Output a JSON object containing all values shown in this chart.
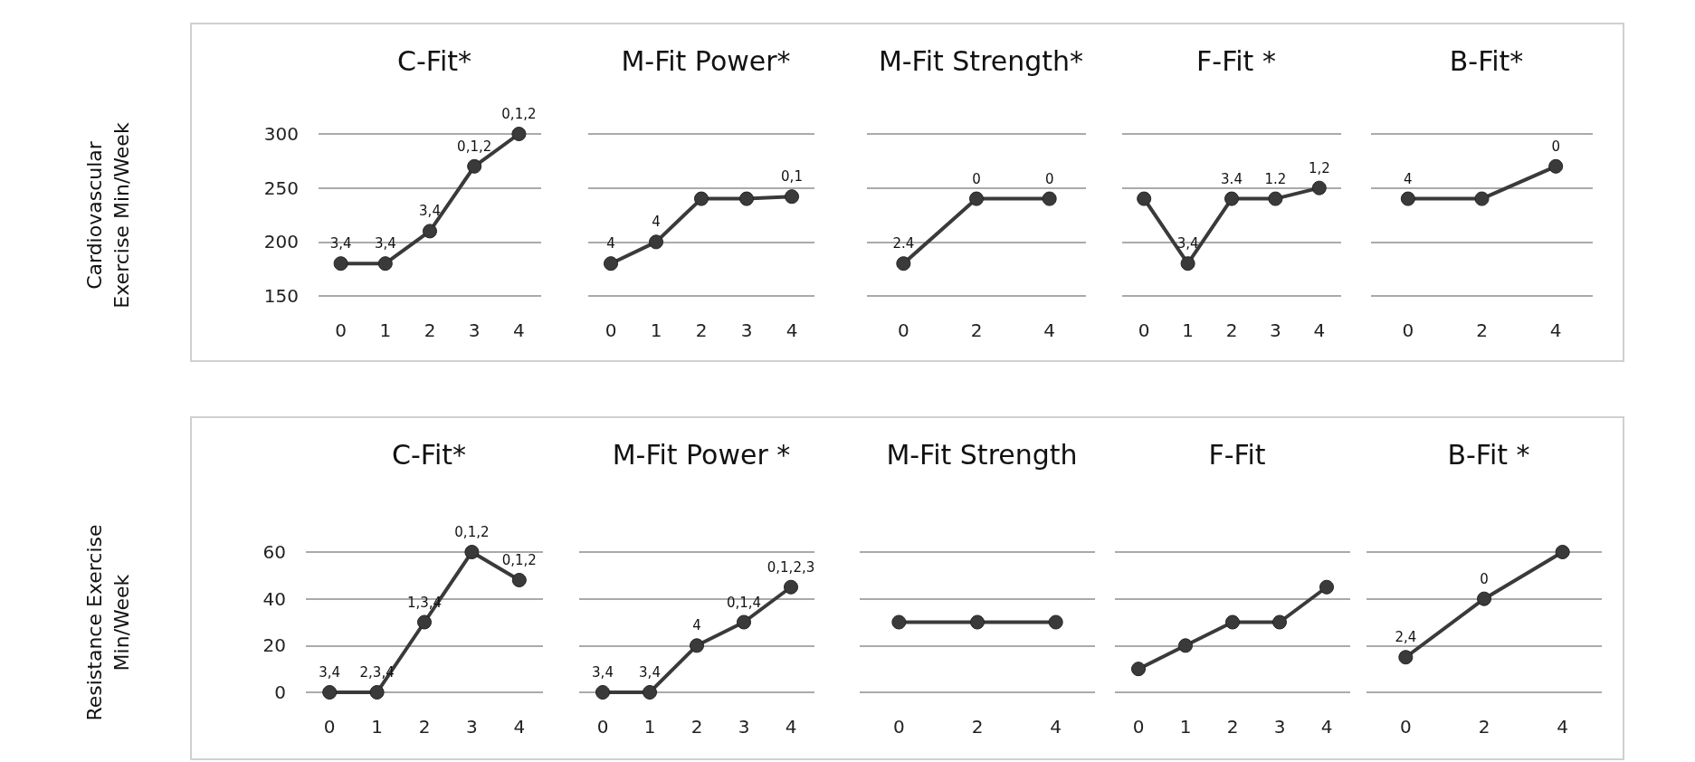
{
  "chart_data": [
    {
      "type": "line",
      "title": "C-Fit*",
      "ylabel": "Cardiovascular Exercise Min/Week",
      "categories": [
        "0",
        "1",
        "2",
        "3",
        "4"
      ],
      "ylim": [
        150,
        300
      ],
      "yticks": [
        150,
        200,
        250,
        300
      ],
      "grid": "y",
      "marker": "circle",
      "series": [
        {
          "color": "#3a3a3a",
          "values": [
            180,
            180,
            210,
            270,
            300
          ]
        }
      ],
      "annotations": [
        {
          "text": "3,4",
          "x": "0",
          "y": 180
        },
        {
          "text": "3,4",
          "x": "1",
          "y": 180
        },
        {
          "text": "3,4",
          "x": "2",
          "y": 210
        },
        {
          "text": "0,1,2",
          "x": "3",
          "y": 270
        },
        {
          "text": "0,1,2",
          "x": "4",
          "y": 300
        }
      ]
    },
    {
      "type": "line",
      "title": "M-Fit Power*",
      "categories": [
        "0",
        "1",
        "2",
        "3",
        "4"
      ],
      "ylim": [
        150,
        300
      ],
      "yticks": [
        150,
        200,
        250,
        300
      ],
      "grid": "y",
      "marker": "circle",
      "tick_labels": "x",
      "series": [
        {
          "color": "#3a3a3a",
          "values": [
            180,
            200,
            240,
            240,
            242
          ]
        }
      ],
      "annotations": [
        {
          "text": "4",
          "x": "0",
          "y": 180
        },
        {
          "text": "4",
          "x": "1",
          "y": 200
        },
        {
          "text": "0,1",
          "x": "4",
          "y": 242
        }
      ]
    },
    {
      "type": "line",
      "title": "M-Fit Strength*",
      "categories": [
        "0",
        "2",
        "4"
      ],
      "ylim": [
        150,
        300
      ],
      "yticks": [
        150,
        200,
        250,
        300
      ],
      "grid": "y",
      "marker": "circle",
      "tick_labels": "x",
      "series": [
        {
          "color": "#3a3a3a",
          "values": [
            180,
            240,
            240
          ]
        }
      ],
      "annotations": [
        {
          "text": "2.4",
          "x": "0",
          "y": 180
        },
        {
          "text": "0",
          "x": "2",
          "y": 240
        },
        {
          "text": "0",
          "x": "4",
          "y": 240
        }
      ]
    },
    {
      "type": "line",
      "title": "F-Fit *",
      "categories": [
        "0",
        "1",
        "2",
        "3",
        "4"
      ],
      "ylim": [
        150,
        300
      ],
      "yticks": [
        150,
        200,
        250,
        300
      ],
      "grid": "y",
      "marker": "circle",
      "tick_labels": "x",
      "series": [
        {
          "color": "#3a3a3a",
          "values": [
            240,
            180,
            240,
            240,
            250
          ]
        }
      ],
      "annotations": [
        {
          "text": "3,4",
          "x": "1",
          "y": 180
        },
        {
          "text": "3.4",
          "x": "2",
          "y": 240
        },
        {
          "text": "1.2",
          "x": "3",
          "y": 240
        },
        {
          "text": "1,2",
          "x": "4",
          "y": 250
        }
      ]
    },
    {
      "type": "line",
      "title": "B-Fit*",
      "categories": [
        "0",
        "2",
        "4"
      ],
      "ylim": [
        150,
        300
      ],
      "yticks": [
        150,
        200,
        250,
        300
      ],
      "grid": "y",
      "marker": "circle",
      "tick_labels": "x",
      "series": [
        {
          "color": "#3a3a3a",
          "values": [
            240,
            240,
            270
          ]
        }
      ],
      "annotations": [
        {
          "text": "4",
          "x": "0",
          "y": 240
        },
        {
          "text": "0",
          "x": "4",
          "y": 270
        }
      ]
    },
    {
      "type": "line",
      "title": "C-Fit*",
      "ylabel": "Resistance Exercise Min/Week",
      "categories": [
        "0",
        "1",
        "2",
        "3",
        "4"
      ],
      "ylim": [
        0,
        60
      ],
      "yticks": [
        0,
        20,
        40,
        60
      ],
      "grid": "y",
      "marker": "circle",
      "series": [
        {
          "color": "#3a3a3a",
          "values": [
            0,
            0,
            30,
            60,
            48
          ]
        }
      ],
      "annotations": [
        {
          "text": "3,4",
          "x": "0",
          "y": 0
        },
        {
          "text": "2,3,4",
          "x": "1",
          "y": 0
        },
        {
          "text": "1,3,4",
          "x": "2",
          "y": 30
        },
        {
          "text": "0,1,2",
          "x": "3",
          "y": 60
        },
        {
          "text": "0,1,2",
          "x": "4",
          "y": 48
        }
      ]
    },
    {
      "type": "line",
      "title": "M-Fit Power *",
      "categories": [
        "0",
        "1",
        "2",
        "3",
        "4"
      ],
      "ylim": [
        0,
        60
      ],
      "yticks": [
        0,
        20,
        40,
        60
      ],
      "grid": "y",
      "marker": "circle",
      "tick_labels": "x",
      "series": [
        {
          "color": "#3a3a3a",
          "values": [
            0,
            0,
            20,
            30,
            45
          ]
        }
      ],
      "annotations": [
        {
          "text": "3,4",
          "x": "0",
          "y": 0
        },
        {
          "text": "3,4",
          "x": "1",
          "y": 0
        },
        {
          "text": "4",
          "x": "2",
          "y": 20
        },
        {
          "text": "0,1,4",
          "x": "3",
          "y": 30
        },
        {
          "text": "0,1,2,3",
          "x": "4",
          "y": 45
        }
      ]
    },
    {
      "type": "line",
      "title": "M-Fit Strength",
      "categories": [
        "0",
        "2",
        "4"
      ],
      "ylim": [
        0,
        60
      ],
      "yticks": [
        0,
        20,
        40,
        60
      ],
      "grid": "y",
      "marker": "circle",
      "tick_labels": "x",
      "series": [
        {
          "color": "#3a3a3a",
          "values": [
            30,
            30,
            30
          ]
        }
      ]
    },
    {
      "type": "line",
      "title": "F-Fit",
      "categories": [
        "0",
        "1",
        "2",
        "3",
        "4"
      ],
      "ylim": [
        0,
        60
      ],
      "yticks": [
        0,
        20,
        40,
        60
      ],
      "grid": "y",
      "marker": "circle",
      "tick_labels": "x",
      "series": [
        {
          "color": "#3a3a3a",
          "values": [
            10,
            20,
            30,
            30,
            45
          ]
        }
      ]
    },
    {
      "type": "line",
      "title": "B-Fit *",
      "categories": [
        "0",
        "2",
        "4"
      ],
      "ylim": [
        0,
        60
      ],
      "yticks": [
        0,
        20,
        40,
        60
      ],
      "grid": "y",
      "marker": "circle",
      "tick_labels": "x",
      "series": [
        {
          "color": "#3a3a3a",
          "values": [
            15,
            40,
            60
          ]
        }
      ],
      "annotations": [
        {
          "text": "2,4",
          "x": "0",
          "y": 15
        },
        {
          "text": "0",
          "x": "2",
          "y": 40
        }
      ]
    }
  ]
}
